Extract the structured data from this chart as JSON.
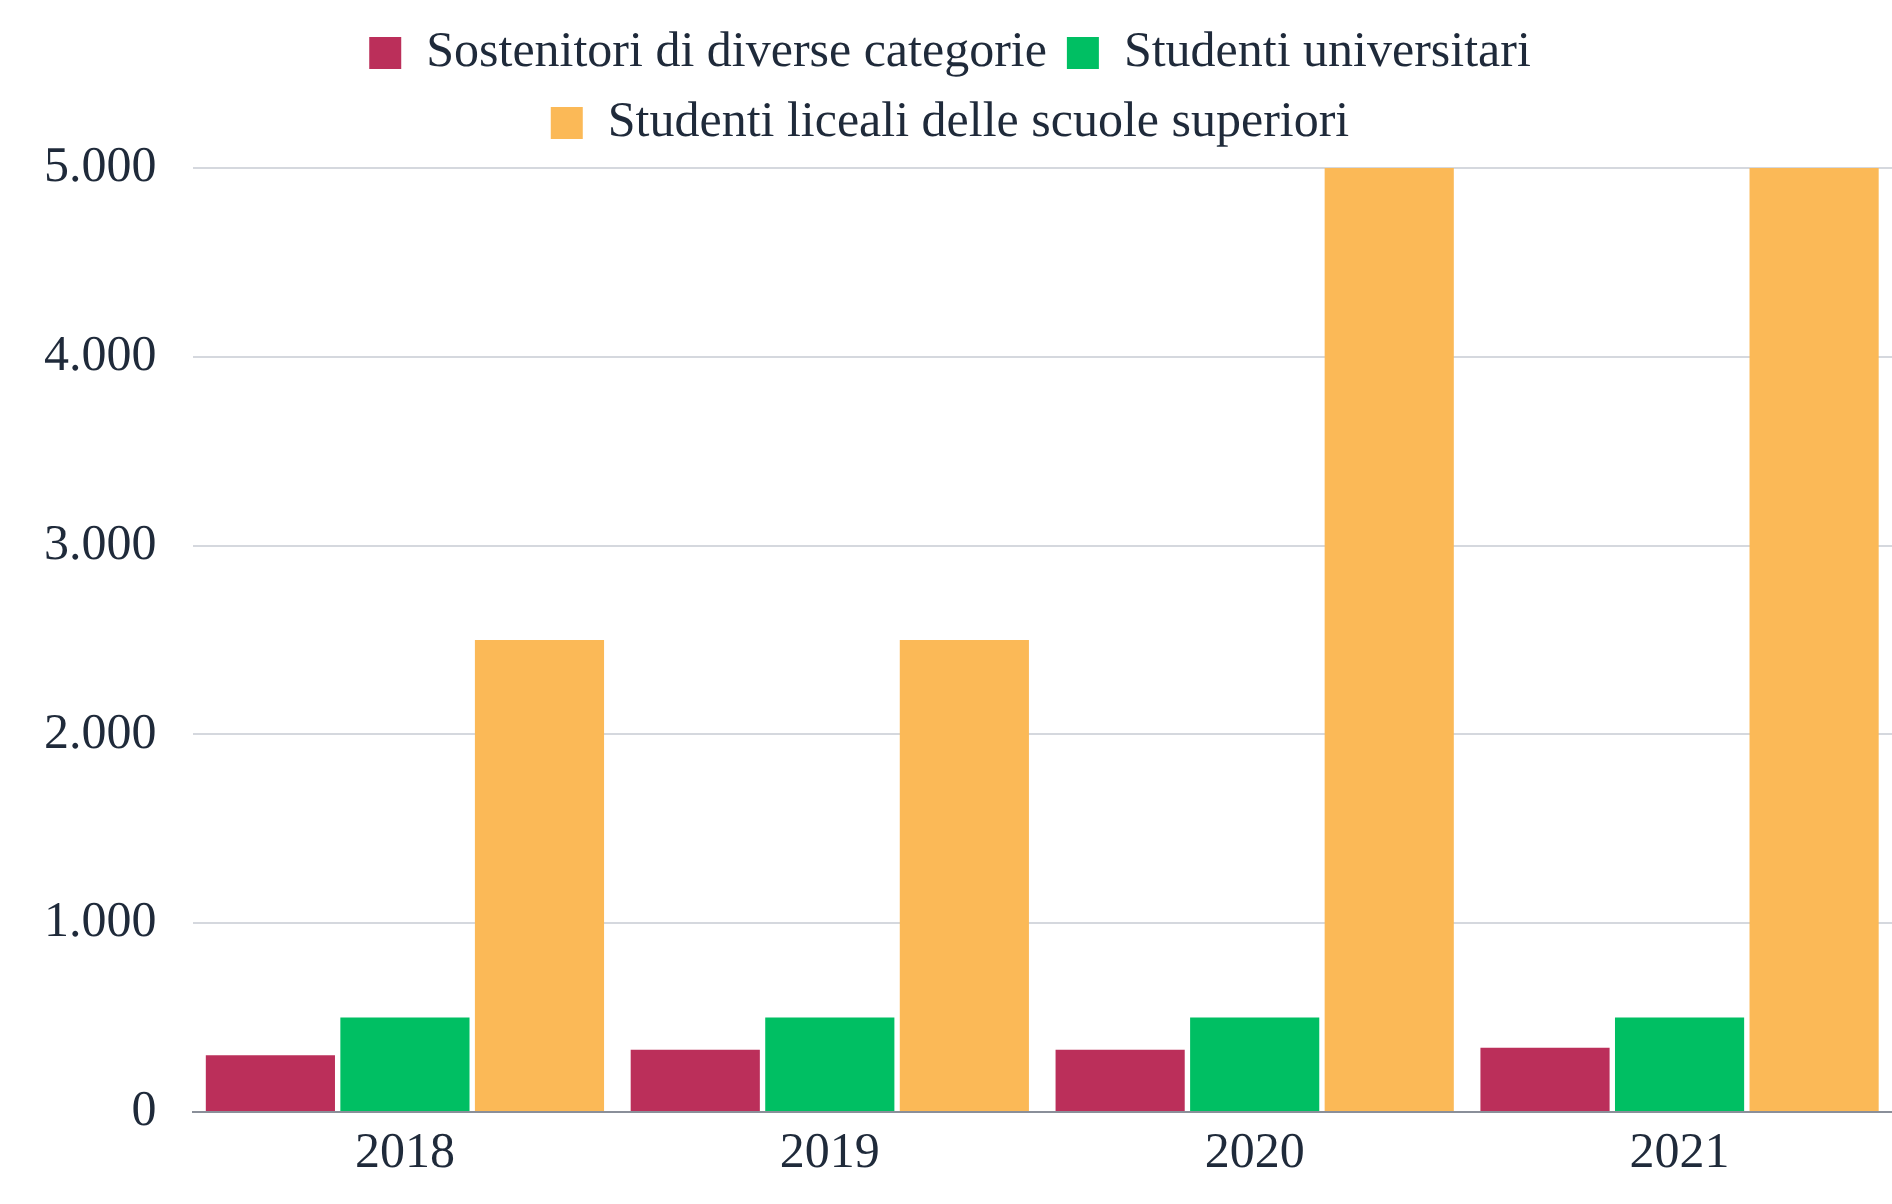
{
  "chart_data": {
    "type": "bar",
    "categories": [
      "2018",
      "2019",
      "2020",
      "2021"
    ],
    "series": [
      {
        "name": "Sostenitori di diverse categorie",
        "color": "#bb2f5a",
        "values": [
          300,
          330,
          330,
          340
        ]
      },
      {
        "name": "Studenti universitari",
        "color": "#00bf63",
        "values": [
          500,
          500,
          500,
          500
        ]
      },
      {
        "name": "Studenti liceali delle scuole superiori",
        "color": "#fbb957",
        "values": [
          2500,
          2500,
          5000,
          5000
        ]
      }
    ],
    "ylim": [
      0,
      5000
    ],
    "yticks": [
      0,
      {
        "value": 1000,
        "label": "1.000"
      },
      {
        "value": 2000,
        "label": "2.000"
      },
      {
        "value": 3000,
        "label": "3.000"
      },
      {
        "value": 4000,
        "label": "4.000"
      },
      {
        "value": 5000,
        "label": "5.000"
      }
    ],
    "grid": "y",
    "legend": "top"
  }
}
